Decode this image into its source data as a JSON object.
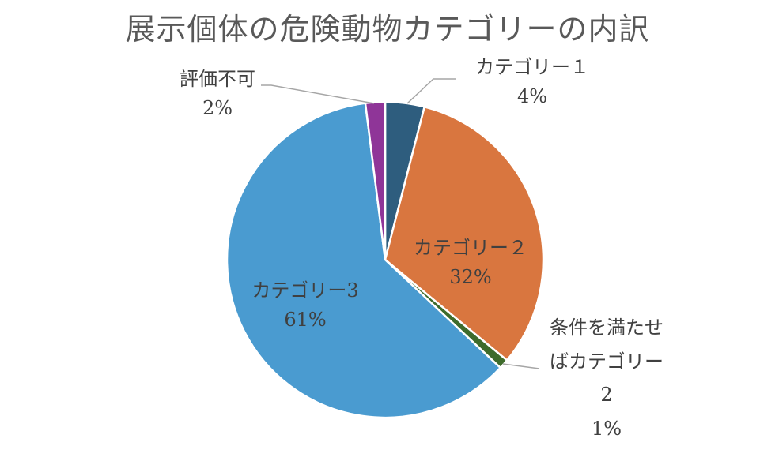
{
  "chart_data": {
    "type": "pie",
    "title": "展示個体の危険動物カテゴリーの内訳",
    "categories": [
      "カテゴリー１",
      "カテゴリー２",
      "条件を満たせばカテゴリー２",
      "カテゴリー3",
      "評価不可"
    ],
    "values": [
      4,
      32,
      1,
      61,
      2
    ],
    "labels": [
      {
        "name": "カテゴリー１",
        "pct": "4%"
      },
      {
        "name": "カテゴリー２",
        "pct": "32%"
      },
      {
        "name_line1": "条件を満たせ",
        "name_line2": "ばカテゴリー",
        "name_line3": "2",
        "pct": "1%"
      },
      {
        "name": "カテゴリー3",
        "pct": "61%"
      },
      {
        "name": "評価不可",
        "pct": "2%"
      }
    ],
    "colors": [
      "#2e5d7e",
      "#d9763f",
      "#3e6b2b",
      "#4a9bd0",
      "#8f3598"
    ],
    "legend": "none"
  }
}
